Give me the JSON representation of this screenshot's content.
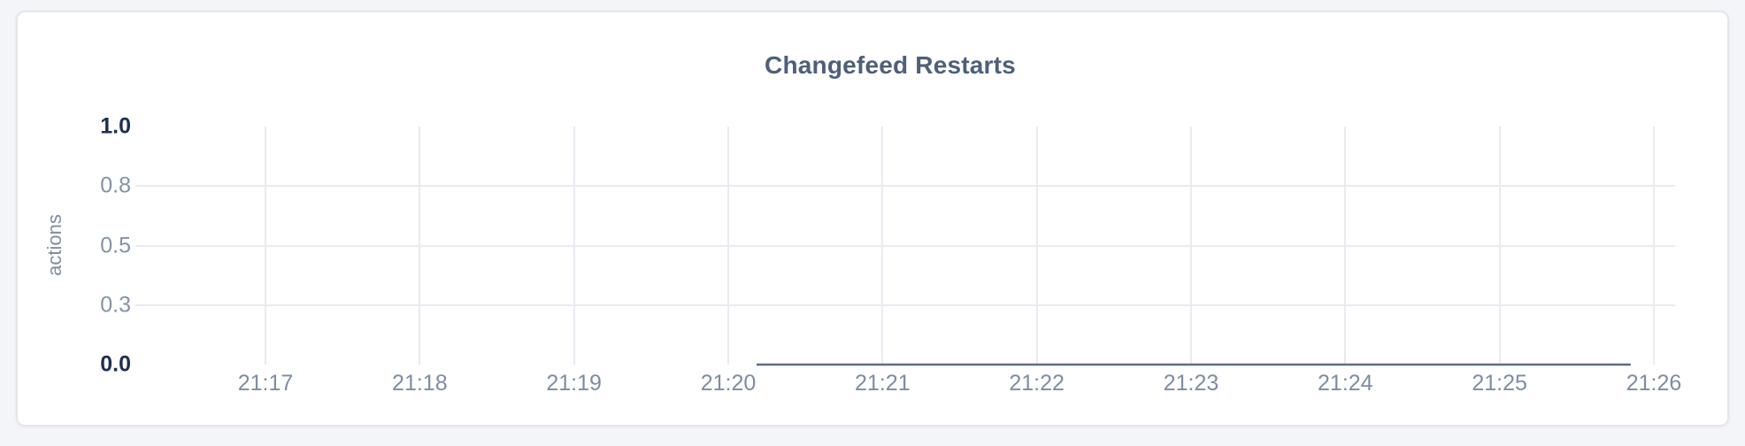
{
  "page": {
    "background": "#f4f5f8"
  },
  "card": {
    "background": "#ffffff",
    "border_color": "#e5e6ea"
  },
  "colors": {
    "title": "#4e5f78",
    "axis_tick_major": "#1c3150",
    "axis_tick_minor": "#8492a6",
    "x_tick": "#7e8da2",
    "axis_label": "#7e8da2",
    "gridline": "#e9ebf1",
    "series_line": "#5f6c87"
  },
  "chart_data": {
    "type": "line",
    "title": "Changefeed Restarts",
    "xlabel": "",
    "ylabel": "actions",
    "ylim": [
      0,
      1
    ],
    "grid": true,
    "legend": "none",
    "x_ticks": [
      "21:17",
      "21:18",
      "21:19",
      "21:20",
      "21:21",
      "21:22",
      "21:23",
      "21:24",
      "21:25",
      "21:26"
    ],
    "x_range": {
      "start": "21:16:08",
      "end": "21:26:08"
    },
    "y_ticks": [
      {
        "value": 1.0,
        "label": "1.0"
      },
      {
        "value": 0.75,
        "label": "0.8"
      },
      {
        "value": 0.5,
        "label": "0.5"
      },
      {
        "value": 0.25,
        "label": "0.3"
      },
      {
        "value": 0.0,
        "label": "0.0"
      }
    ],
    "series": [
      {
        "name": "Changefeed Restarts",
        "color": "#5f6c87",
        "points": [
          {
            "time": "21:20:11",
            "value": 0
          },
          {
            "time": "21:25:51",
            "value": 0
          }
        ]
      }
    ]
  }
}
